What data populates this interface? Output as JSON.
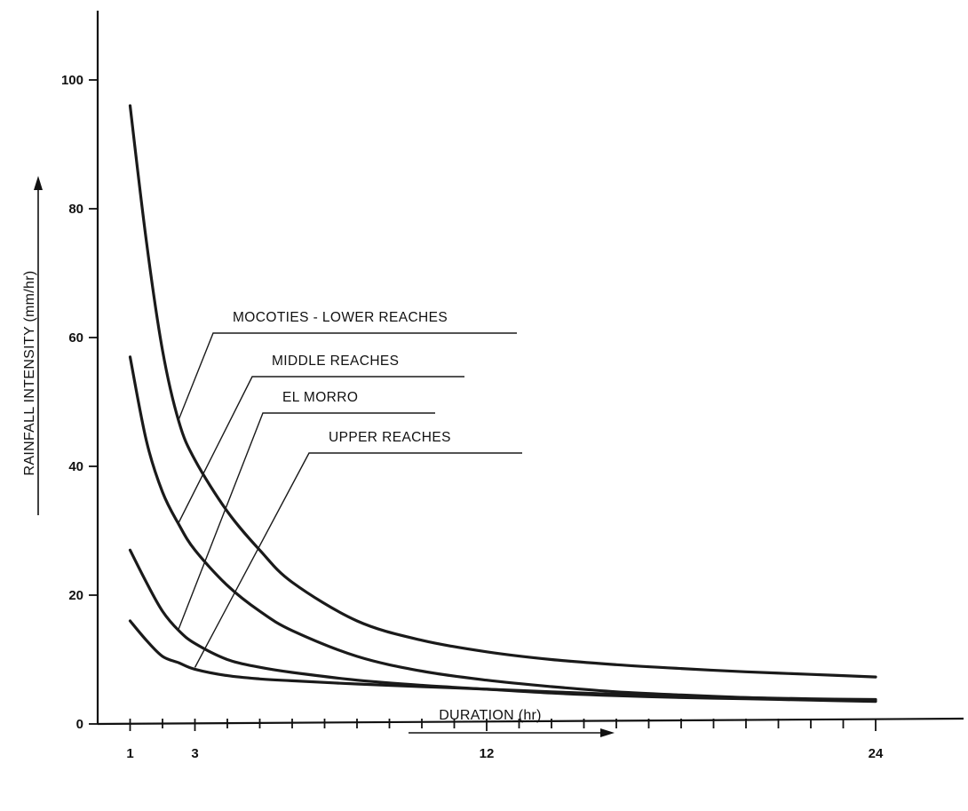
{
  "chart_data": {
    "type": "line",
    "xlabel": "DURATION (hr)",
    "ylabel": "RAINFALL INTENSITY (mm/hr)",
    "xticks": [
      1,
      3,
      12,
      24
    ],
    "yticks": [
      0,
      20,
      40,
      60,
      80,
      100
    ],
    "xlim": [
      0,
      25.5
    ],
    "ylim": [
      0,
      110
    ],
    "grid": false,
    "series": [
      {
        "name": "MOCOTIES - LOWER REACHES",
        "x": [
          1,
          1.5,
          2,
          2.5,
          3,
          4,
          5,
          6,
          8,
          10,
          12,
          14,
          16,
          18,
          20,
          22,
          24
        ],
        "y": [
          96,
          75,
          58,
          47,
          41,
          33,
          27,
          22,
          16,
          13,
          11.2,
          10,
          9.2,
          8.6,
          8.1,
          7.7,
          7.3
        ]
      },
      {
        "name": "MIDDLE REACHES",
        "x": [
          1,
          1.5,
          2,
          2.5,
          3,
          4,
          5,
          6,
          8,
          10,
          12,
          14,
          16,
          18,
          20,
          22,
          24
        ],
        "y": [
          57,
          44,
          36,
          31,
          27,
          21.5,
          17.5,
          14.5,
          10.5,
          8.2,
          6.8,
          5.8,
          5.0,
          4.5,
          4.1,
          3.8,
          3.6
        ]
      },
      {
        "name": "EL MORRO",
        "x": [
          1,
          1.5,
          2,
          2.5,
          3,
          4,
          5,
          6,
          8,
          10,
          12,
          14,
          16,
          18,
          20,
          22,
          24
        ],
        "y": [
          27,
          22,
          17.5,
          14.5,
          12.5,
          10,
          8.8,
          8.0,
          6.8,
          6.0,
          5.4,
          4.8,
          4.4,
          4.1,
          3.9,
          3.7,
          3.5
        ]
      },
      {
        "name": "UPPER REACHES",
        "x": [
          1,
          1.5,
          2,
          2.5,
          3,
          4,
          5,
          6,
          8,
          10,
          12,
          14,
          16,
          18,
          20,
          22,
          24
        ],
        "y": [
          16,
          13,
          10.5,
          9.5,
          8.5,
          7.5,
          7.0,
          6.7,
          6.2,
          5.8,
          5.4,
          5.0,
          4.6,
          4.3,
          4.1,
          3.9,
          3.8
        ]
      }
    ]
  }
}
